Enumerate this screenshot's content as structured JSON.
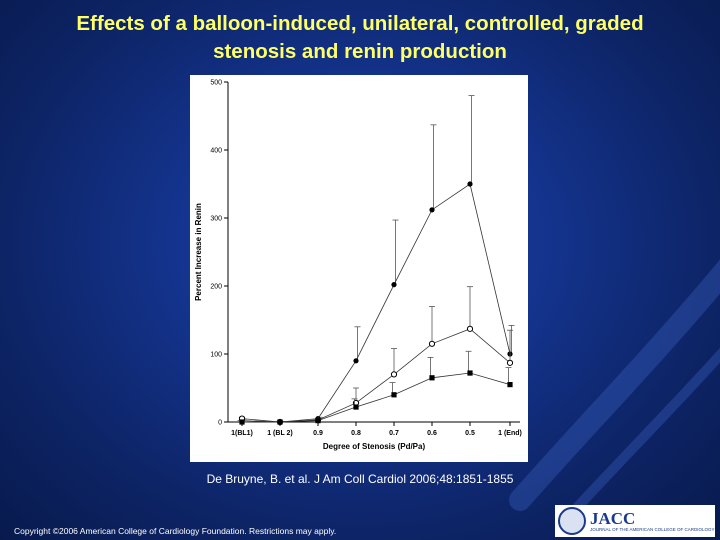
{
  "slide": {
    "title_line1": "Effects of a balloon-induced, unilateral, controlled, graded",
    "title_line2": "stenosis and renin production",
    "citation": "De Bruyne, B. et al. J Am Coll Cardiol 2006;48:1851-1855",
    "copyright": "Copyright ©2006 American College of Cardiology Foundation. Restrictions may apply.",
    "logo_name": "JACC",
    "logo_subtitle": "JOURNAL OF THE AMERICAN COLLEGE OF CARDIOLOGY"
  },
  "colors": {
    "title": "#ffff66",
    "background": "#14348f",
    "text": "#ffffff"
  },
  "chart_data": {
    "type": "line",
    "xlabel": "Degree of Stenosis (Pd/Pa)",
    "ylabel": "Percent Increase in Renin",
    "categories": [
      "1(BL1)",
      "1 (BL 2)",
      "0.9",
      "0.8",
      "0.7",
      "0.6",
      "0.5",
      "1 (End)"
    ],
    "yticks": [
      0,
      100,
      200,
      300,
      400,
      500
    ],
    "ylim": [
      0,
      500
    ],
    "grid": false,
    "series": [
      {
        "marker": "filled-circle",
        "values": [
          2,
          0,
          5,
          90,
          202,
          312,
          350,
          100
        ],
        "error": [
          2,
          1,
          2,
          50,
          95,
          125,
          130,
          42
        ]
      },
      {
        "marker": "open-circle",
        "values": [
          5,
          0,
          3,
          28,
          70,
          115,
          137,
          87
        ],
        "error": [
          2,
          1,
          2,
          22,
          38,
          55,
          62,
          48
        ]
      },
      {
        "marker": "filled-square",
        "values": [
          0,
          0,
          2,
          22,
          40,
          65,
          72,
          55
        ],
        "error": [
          2,
          1,
          2,
          12,
          18,
          30,
          32,
          25
        ]
      }
    ]
  }
}
